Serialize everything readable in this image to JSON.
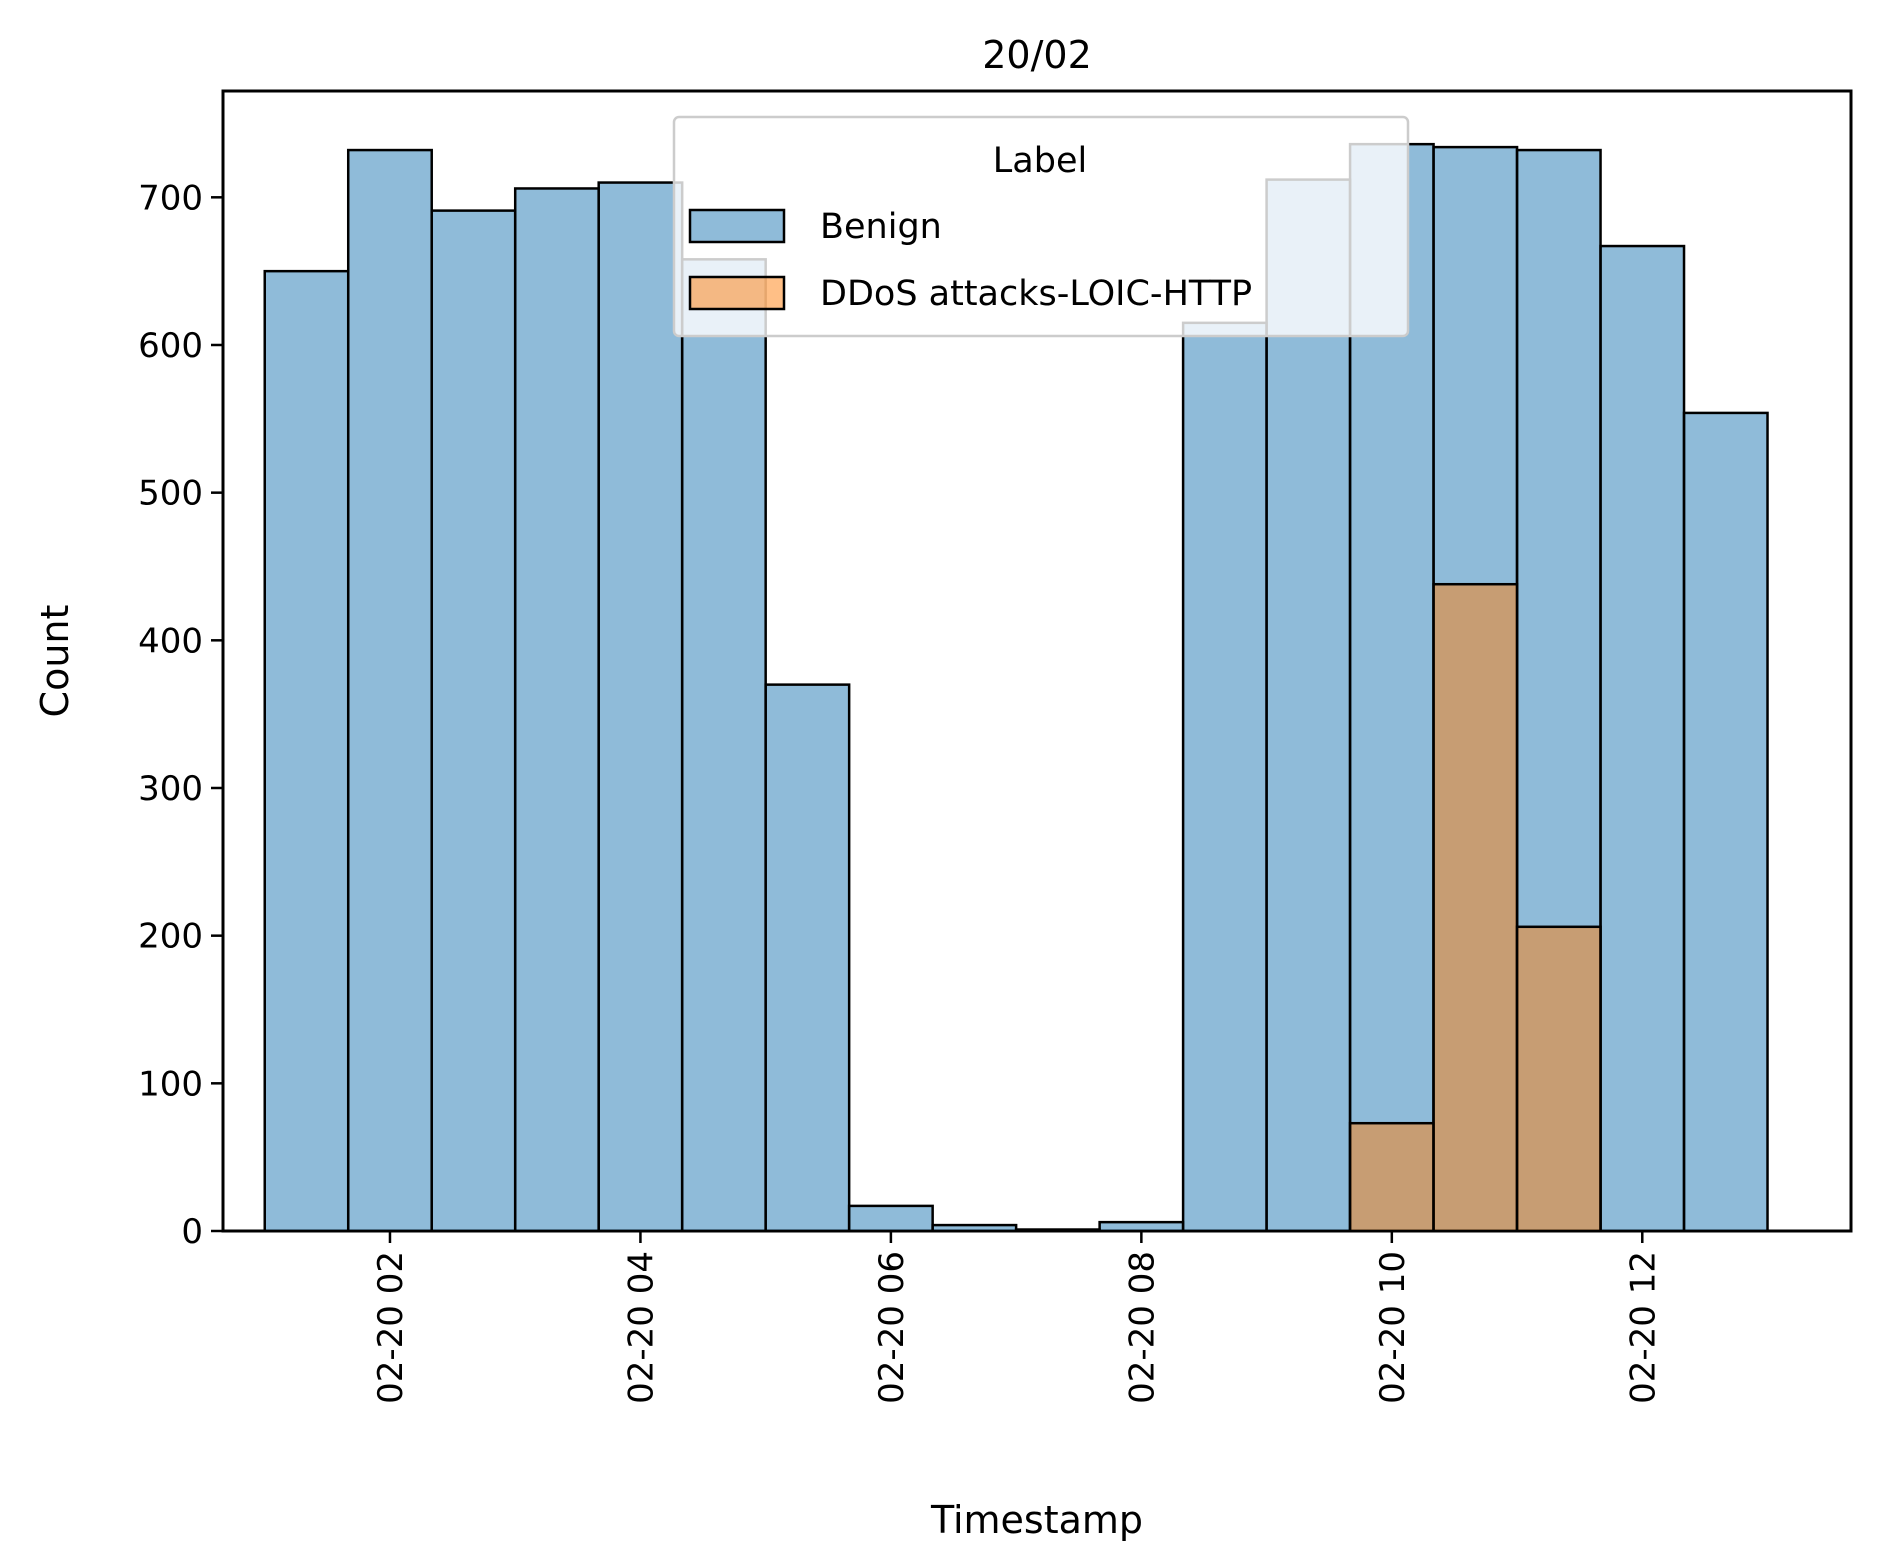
{
  "chart_data": {
    "type": "bar",
    "title": "20/02",
    "xlabel": "Timestamp",
    "ylabel": "Count",
    "xlim": [
      "2024-02-20 00:40",
      "2024-02-20 13:40"
    ],
    "ylim": [
      0,
      772
    ],
    "x_ticks": [
      {
        "value": "2024-02-20 02:00",
        "label": "02-20 02"
      },
      {
        "value": "2024-02-20 04:00",
        "label": "02-20 04"
      },
      {
        "value": "2024-02-20 06:00",
        "label": "02-20 06"
      },
      {
        "value": "2024-02-20 08:00",
        "label": "02-20 08"
      },
      {
        "value": "2024-02-20 10:00",
        "label": "02-20 10"
      },
      {
        "value": "2024-02-20 12:00",
        "label": "02-20 12"
      }
    ],
    "y_ticks": [
      0,
      100,
      200,
      300,
      400,
      500,
      600,
      700
    ],
    "bin_edges": [
      "2024-02-20 01:00",
      "2024-02-20 01:40",
      "2024-02-20 02:20",
      "2024-02-20 03:00",
      "2024-02-20 03:40",
      "2024-02-20 04:20",
      "2024-02-20 05:00",
      "2024-02-20 05:40",
      "2024-02-20 06:20",
      "2024-02-20 07:00",
      "2024-02-20 07:40",
      "2024-02-20 08:20",
      "2024-02-20 09:00",
      "2024-02-20 09:40",
      "2024-02-20 10:20",
      "2024-02-20 11:00",
      "2024-02-20 11:40",
      "2024-02-20 12:20",
      "2024-02-20 13:00"
    ],
    "series": [
      {
        "name": "Benign",
        "color": "#1f77b4",
        "values": [
          650,
          732,
          691,
          706,
          710,
          658,
          370,
          17,
          4,
          1,
          6,
          615,
          712,
          736,
          734,
          732,
          667,
          554
        ]
      },
      {
        "name": "DDoS attacks-LOIC-HTTP",
        "color": "#ff7f0e",
        "values": [
          0,
          0,
          0,
          0,
          0,
          0,
          0,
          0,
          0,
          0,
          0,
          0,
          0,
          73,
          438,
          206,
          0,
          0
        ]
      }
    ],
    "legend": {
      "title": "Label",
      "placement": "top-center"
    },
    "grid": false,
    "colors": {
      "benign": "#1f77b4",
      "ddos": "#ff7f0e",
      "overlap": "#8f9ca0"
    }
  }
}
